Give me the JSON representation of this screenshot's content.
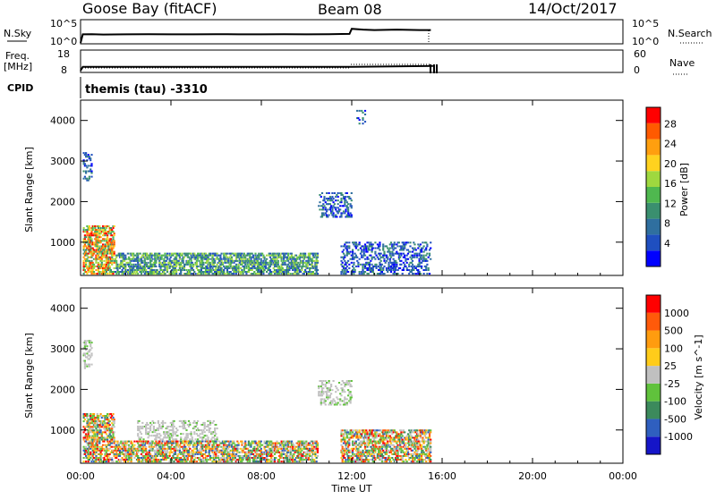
{
  "header": {
    "station": "Goose Bay (fitACF)",
    "beam": "Beam 08",
    "date": "14/Oct/2017"
  },
  "top_panels": {
    "nsky_label": "N.Sky",
    "nsky_ticks": [
      "10^5",
      "10^0"
    ],
    "nsearch_label": "N.Search",
    "nsearch_ticks": [
      "10^5",
      "10^0"
    ],
    "freq_label": "Freq.",
    "freq_unit": "[MHz]",
    "freq_ticks": [
      "18",
      "8"
    ],
    "nave_label": "Nave",
    "nave_ticks": [
      "60",
      "0"
    ],
    "cpid_label": "CPID",
    "cpid_value": "themis (tau) -3310"
  },
  "time_axis": {
    "label": "Time UT",
    "ticks": [
      "00:00",
      "04:00",
      "08:00",
      "12:00",
      "16:00",
      "20:00",
      "00:00"
    ]
  },
  "chart_data": [
    {
      "type": "heatmap",
      "title": "Power",
      "xlabel": "Time UT",
      "ylabel": "Slant Range [km]",
      "xlim": [
        0,
        24
      ],
      "ylim": [
        180,
        4500
      ],
      "yticks": [
        "1000",
        "2000",
        "3000",
        "4000"
      ],
      "colorbar": {
        "label": "Power [dB]",
        "ticks": [
          "4",
          "8",
          "12",
          "16",
          "20",
          "24",
          "28"
        ],
        "colors": [
          "#0000ff",
          "#1f4fc0",
          "#2f6f9f",
          "#3a8f6f",
          "#4fb84f",
          "#9fd83f",
          "#ffd21f",
          "#ff9f0f",
          "#ff5a00",
          "#ff0000"
        ]
      },
      "echo_regions": [
        {
          "t_start": 0.1,
          "t_end": 0.45,
          "r_min": 2500,
          "r_max": 3200,
          "level": "weak"
        },
        {
          "t_start": 0.1,
          "t_end": 1.5,
          "r_min": 200,
          "r_max": 1400,
          "level": "strong"
        },
        {
          "t_start": 1.5,
          "t_end": 10.5,
          "r_min": 200,
          "r_max": 700,
          "level": "medium"
        },
        {
          "t_start": 10.5,
          "t_end": 12.0,
          "r_min": 1600,
          "r_max": 2200,
          "level": "weak"
        },
        {
          "t_start": 11.5,
          "t_end": 15.5,
          "r_min": 200,
          "r_max": 1000,
          "level": "weak"
        },
        {
          "t_start": 12.2,
          "t_end": 12.6,
          "r_min": 3900,
          "r_max": 4300,
          "level": "weak"
        }
      ]
    },
    {
      "type": "heatmap",
      "title": "Velocity",
      "xlabel": "Time UT",
      "ylabel": "Slant Range [km]",
      "xlim": [
        0,
        24
      ],
      "ylim": [
        180,
        4500
      ],
      "yticks": [
        "1000",
        "2000",
        "3000",
        "4000"
      ],
      "colorbar": {
        "label": "Velocity [m s^-1]",
        "ticks": [
          "1000",
          "500",
          "100",
          "25",
          "-25",
          "-100",
          "-500",
          "-1000"
        ],
        "colors": [
          "#1515c8",
          "#2f5fbf",
          "#3c8a5c",
          "#60c23c",
          "#c0c0c0",
          "#ffcc1a",
          "#ff9c0f",
          "#ff5a0a",
          "#ff0000"
        ]
      },
      "echo_regions": [
        {
          "t_start": 0.1,
          "t_end": 0.45,
          "r_min": 2500,
          "r_max": 3200,
          "level": "gray"
        },
        {
          "t_start": 0.1,
          "t_end": 1.5,
          "r_min": 200,
          "r_max": 1400,
          "level": "mixed"
        },
        {
          "t_start": 2.5,
          "t_end": 6.0,
          "r_min": 700,
          "r_max": 1200,
          "level": "gray"
        },
        {
          "t_start": 1.5,
          "t_end": 10.5,
          "r_min": 200,
          "r_max": 700,
          "level": "mixed"
        },
        {
          "t_start": 10.5,
          "t_end": 12.0,
          "r_min": 1600,
          "r_max": 2200,
          "level": "gray"
        },
        {
          "t_start": 11.5,
          "t_end": 15.5,
          "r_min": 200,
          "r_max": 1000,
          "level": "mixed"
        }
      ]
    }
  ],
  "timeseries": {
    "nsky_hours": [
      0.0,
      0.1,
      0.5,
      1.0,
      2.0,
      3.0,
      4.0,
      5.0,
      6.0,
      7.0,
      8.0,
      9.0,
      10.0,
      11.0,
      11.9,
      12.0,
      12.5,
      13.0,
      14.0,
      15.0,
      15.5
    ],
    "nsky_log10": [
      0.0,
      2.0,
      2.05,
      1.95,
      2.0,
      2.05,
      2.0,
      2.0,
      2.05,
      2.0,
      2.0,
      2.05,
      2.0,
      2.05,
      2.1,
      3.3,
      3.1,
      3.0,
      3.1,
      3.0,
      3.0
    ],
    "freq_hours": [
      0.0,
      0.1,
      12.0,
      15.6
    ],
    "freq_mhz": [
      8.0,
      10.0,
      10.0,
      10.5
    ]
  }
}
